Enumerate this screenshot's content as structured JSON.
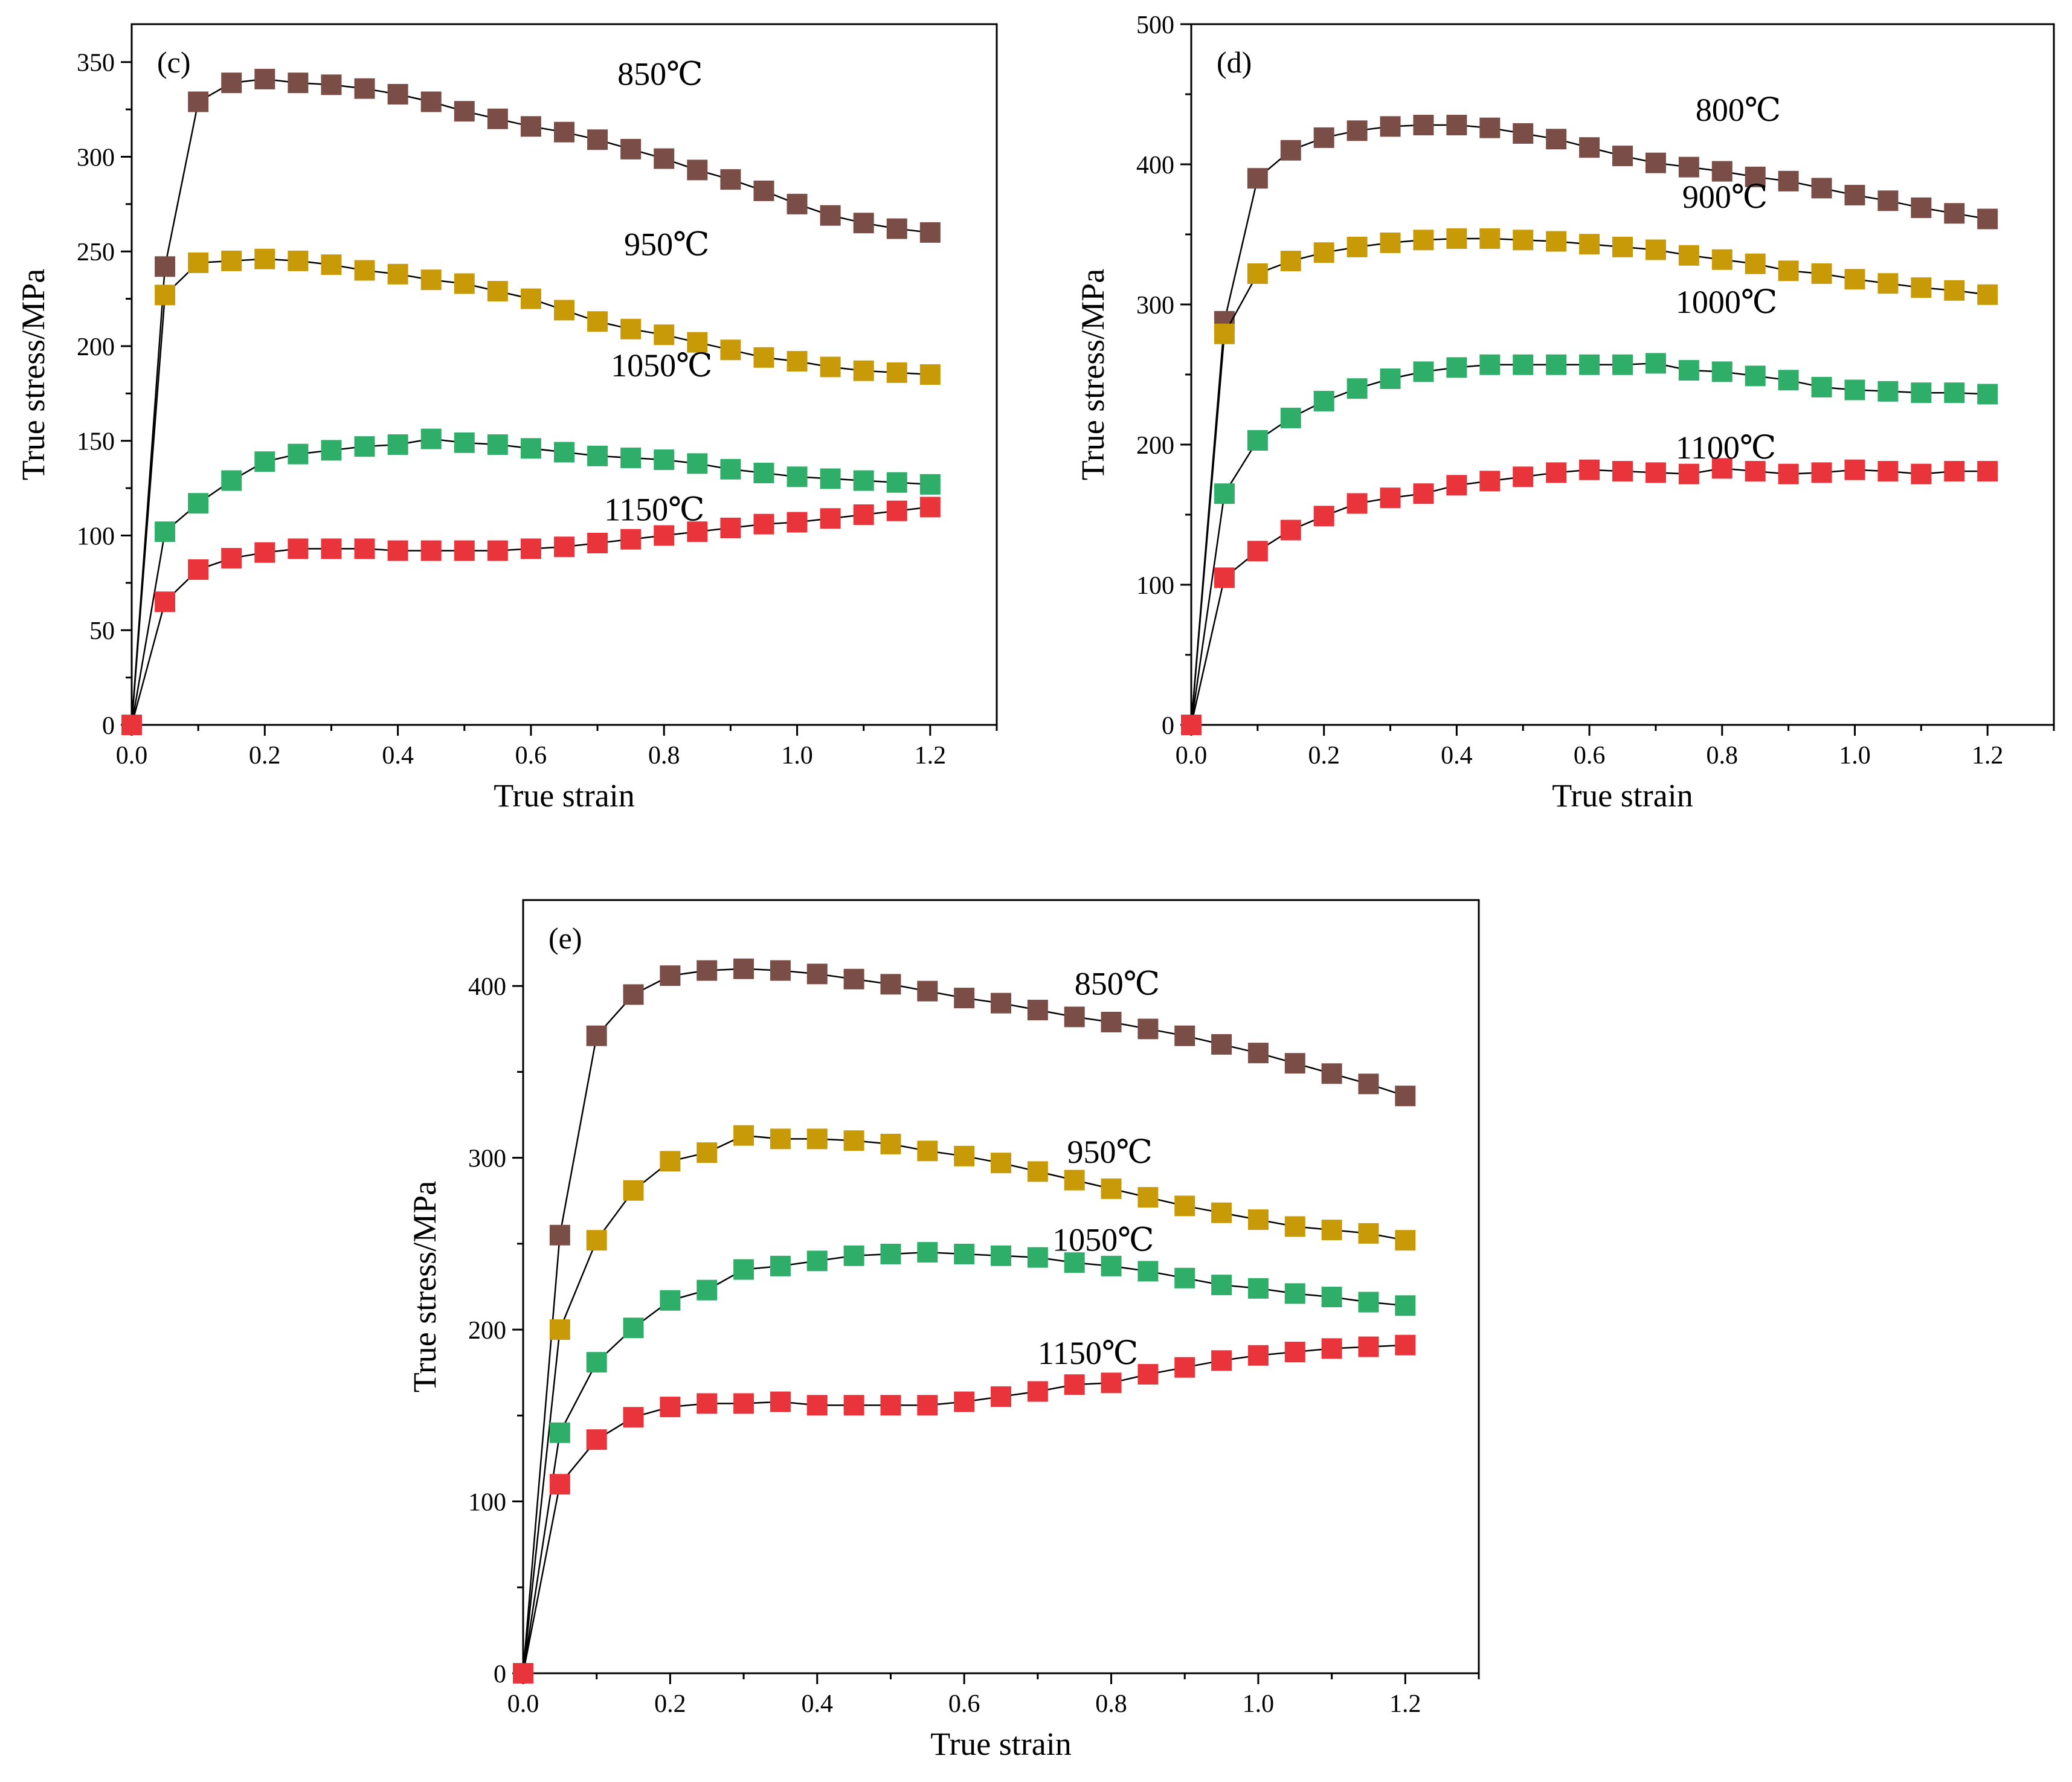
{
  "chart_data": [
    {
      "type": "line",
      "panel": "(c)",
      "xlabel": "True strain",
      "ylabel": "True stress/MPa",
      "xlim": [
        0,
        1.3
      ],
      "ylim": [
        0,
        370
      ],
      "xticks": [
        0.0,
        0.2,
        0.4,
        0.6,
        0.8,
        1.0,
        1.2
      ],
      "xtick_labels": [
        "0.0",
        "0.2",
        "0.4",
        "0.6",
        "0.8",
        "1.0",
        "1.2"
      ],
      "yticks": [
        0,
        50,
        100,
        150,
        200,
        250,
        300,
        350
      ],
      "ytick_labels": [
        "0",
        "50",
        "100",
        "150",
        "200",
        "250",
        "300",
        "350"
      ],
      "x": [
        0,
        0.05,
        0.1,
        0.15,
        0.2,
        0.25,
        0.3,
        0.35,
        0.4,
        0.45,
        0.5,
        0.55,
        0.6,
        0.65,
        0.7,
        0.75,
        0.8,
        0.85,
        0.9,
        0.95,
        1.0,
        1.05,
        1.1,
        1.15,
        1.2
      ],
      "series": [
        {
          "name": "850℃",
          "color": "#7b4d47",
          "values": [
            0,
            242,
            329,
            339,
            341,
            339,
            338,
            336,
            333,
            329,
            324,
            320,
            316,
            313,
            309,
            304,
            299,
            293,
            288,
            282,
            275,
            269,
            265,
            262,
            260
          ]
        },
        {
          "name": "950℃",
          "color": "#c99a07",
          "values": [
            0,
            227,
            244,
            245,
            246,
            245,
            243,
            240,
            238,
            235,
            233,
            229,
            225,
            219,
            213,
            209,
            206,
            202,
            198,
            194,
            192,
            189,
            187,
            186,
            185
          ]
        },
        {
          "name": "1050℃",
          "color": "#2fae6a",
          "values": [
            0,
            102,
            117,
            129,
            139,
            143,
            145,
            147,
            148,
            151,
            149,
            148,
            146,
            144,
            142,
            141,
            140,
            138,
            135,
            133,
            131,
            130,
            129,
            128,
            127
          ]
        },
        {
          "name": "1150℃",
          "color": "#e8343a",
          "values": [
            0,
            65,
            82,
            88,
            91,
            93,
            93,
            93,
            92,
            92,
            92,
            92,
            93,
            94,
            96,
            98,
            100,
            102,
            104,
            106,
            107,
            109,
            111,
            113,
            115
          ]
        }
      ],
      "annotations": [
        {
          "text": "850℃",
          "x": 0.73,
          "y": 338
        },
        {
          "text": "950℃",
          "x": 0.74,
          "y": 248
        },
        {
          "text": "1050℃",
          "x": 0.72,
          "y": 184
        },
        {
          "text": "1150℃",
          "x": 0.71,
          "y": 108
        }
      ]
    },
    {
      "type": "line",
      "panel": "(d)",
      "xlabel": "True strain",
      "ylabel": "True stress/MPa",
      "xlim": [
        0,
        1.3
      ],
      "ylim": [
        0,
        500
      ],
      "xticks": [
        0.0,
        0.2,
        0.4,
        0.6,
        0.8,
        1.0,
        1.2
      ],
      "xtick_labels": [
        "0.0",
        "0.2",
        "0.4",
        "0.6",
        "0.8",
        "1.0",
        "1.2"
      ],
      "yticks": [
        0,
        100,
        200,
        300,
        400,
        500
      ],
      "ytick_labels": [
        "0",
        "100",
        "200",
        "300",
        "400",
        "500"
      ],
      "x": [
        0,
        0.05,
        0.1,
        0.15,
        0.2,
        0.25,
        0.3,
        0.35,
        0.4,
        0.45,
        0.5,
        0.55,
        0.6,
        0.65,
        0.7,
        0.75,
        0.8,
        0.85,
        0.9,
        0.95,
        1.0,
        1.05,
        1.1,
        1.15,
        1.2
      ],
      "series": [
        {
          "name": "800℃",
          "color": "#7b4d47",
          "values": [
            0,
            288,
            390,
            410,
            419,
            424,
            427,
            428,
            428,
            426,
            422,
            418,
            412,
            406,
            401,
            398,
            395,
            391,
            388,
            383,
            378,
            374,
            369,
            365,
            361
          ]
        },
        {
          "name": "900℃",
          "color": "#c99a07",
          "values": [
            0,
            279,
            322,
            331,
            337,
            341,
            344,
            346,
            347,
            347,
            346,
            345,
            343,
            341,
            339,
            335,
            332,
            329,
            324,
            322,
            318,
            315,
            312,
            310,
            307
          ]
        },
        {
          "name": "1000℃",
          "color": "#2fae6a",
          "values": [
            0,
            165,
            203,
            219,
            231,
            240,
            247,
            252,
            255,
            257,
            257,
            257,
            257,
            257,
            258,
            253,
            252,
            249,
            246,
            241,
            239,
            238,
            237,
            237,
            236
          ]
        },
        {
          "name": "1100℃",
          "color": "#e8343a",
          "values": [
            0,
            105,
            124,
            139,
            149,
            158,
            162,
            165,
            171,
            174,
            177,
            180,
            182,
            181,
            180,
            179,
            183,
            181,
            179,
            180,
            182,
            181,
            179,
            181,
            181
          ]
        }
      ],
      "annotations": [
        {
          "text": "800℃",
          "x": 0.76,
          "y": 431
        },
        {
          "text": "900℃",
          "x": 0.74,
          "y": 369
        },
        {
          "text": "1000℃",
          "x": 0.73,
          "y": 294
        },
        {
          "text": "1100℃",
          "x": 0.73,
          "y": 190
        }
      ]
    },
    {
      "type": "line",
      "panel": "(e)",
      "xlabel": "True strain",
      "ylabel": "True stress/MPa",
      "xlim": [
        0,
        1.3
      ],
      "ylim": [
        0,
        450
      ],
      "xticks": [
        0.0,
        0.2,
        0.4,
        0.6,
        0.8,
        1.0,
        1.2
      ],
      "xtick_labels": [
        "0.0",
        "0.2",
        "0.4",
        "0.6",
        "0.8",
        "1.0",
        "1.2"
      ],
      "yticks": [
        0,
        100,
        200,
        300,
        400
      ],
      "ytick_labels": [
        "0",
        "100",
        "200",
        "300",
        "400"
      ],
      "x": [
        0,
        0.05,
        0.1,
        0.15,
        0.2,
        0.25,
        0.3,
        0.35,
        0.4,
        0.45,
        0.5,
        0.55,
        0.6,
        0.65,
        0.7,
        0.75,
        0.8,
        0.85,
        0.9,
        0.95,
        1.0,
        1.05,
        1.1,
        1.15,
        1.2
      ],
      "series": [
        {
          "name": "850℃",
          "color": "#7b4d47",
          "values": [
            0,
            255,
            371,
            395,
            406,
            409,
            410,
            409,
            407,
            404,
            401,
            397,
            393,
            390,
            386,
            382,
            379,
            375,
            371,
            366,
            361,
            355,
            349,
            343,
            336
          ]
        },
        {
          "name": "950℃",
          "color": "#c99a07",
          "values": [
            0,
            200,
            252,
            281,
            298,
            303,
            313,
            311,
            311,
            310,
            308,
            304,
            301,
            297,
            292,
            287,
            282,
            277,
            272,
            268,
            264,
            260,
            258,
            256,
            252
          ]
        },
        {
          "name": "1050℃",
          "color": "#2fae6a",
          "values": [
            0,
            140,
            181,
            201,
            217,
            223,
            235,
            237,
            240,
            243,
            244,
            245,
            244,
            243,
            242,
            239,
            237,
            234,
            230,
            226,
            224,
            221,
            219,
            216,
            214
          ]
        },
        {
          "name": "1150℃",
          "color": "#e8343a",
          "values": [
            0,
            110,
            136,
            149,
            155,
            157,
            157,
            158,
            156,
            156,
            156,
            156,
            158,
            161,
            164,
            168,
            169,
            174,
            178,
            182,
            185,
            187,
            189,
            190,
            191
          ]
        }
      ],
      "annotations": [
        {
          "text": "850℃",
          "x": 0.75,
          "y": 395
        },
        {
          "text": "950℃",
          "x": 0.74,
          "y": 297
        },
        {
          "text": "1050℃",
          "x": 0.72,
          "y": 246
        },
        {
          "text": "1150℃",
          "x": 0.7,
          "y": 180
        }
      ]
    }
  ]
}
